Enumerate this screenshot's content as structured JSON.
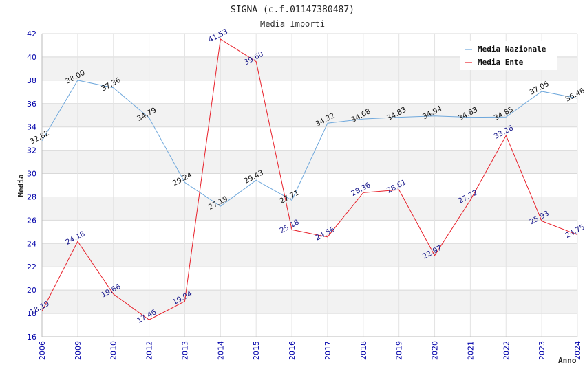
{
  "chart_data": {
    "type": "line",
    "title": "SIGNA (c.f.01147380487)",
    "subtitle": "Media Importi",
    "xlabel": "Anno",
    "ylabel": "Media",
    "ylim": [
      16,
      42
    ],
    "ytick_step": 2,
    "categories": [
      "2006",
      "2009",
      "2010",
      "2012",
      "2013",
      "2014",
      "2015",
      "2016",
      "2017",
      "2018",
      "2019",
      "2020",
      "2021",
      "2022",
      "2023",
      "2024"
    ],
    "series": [
      {
        "name": "Media Nazionale",
        "color": "#6fa8dc",
        "values": [
          32.82,
          38.0,
          37.36,
          34.79,
          29.24,
          27.19,
          29.43,
          27.71,
          34.32,
          34.68,
          34.83,
          34.94,
          34.83,
          34.85,
          37.05,
          36.46
        ],
        "labels": [
          "32.82",
          "38.00",
          "37.36",
          "34.79",
          "29.24",
          "27.19",
          "29.43",
          "27.71",
          "34.32",
          "34.68",
          "34.83",
          "34.94",
          "34.83",
          "34.85",
          "37.05",
          "36.46"
        ]
      },
      {
        "name": "Media Ente",
        "color": "#e8202a",
        "values": [
          18.19,
          24.18,
          19.66,
          17.46,
          19.04,
          41.53,
          39.6,
          25.18,
          24.56,
          28.36,
          28.61,
          22.97,
          27.72,
          33.26,
          25.93,
          24.75
        ],
        "labels": [
          "18.19",
          "24.18",
          "19.66",
          "17.46",
          "19.04",
          "41.53",
          "39.60",
          "25.18",
          "24.56",
          "28.36",
          "28.61",
          "22.97",
          "27.72",
          "33.26",
          "25.93",
          "24.75"
        ]
      }
    ],
    "legend_position": "top-right",
    "grid": true
  }
}
